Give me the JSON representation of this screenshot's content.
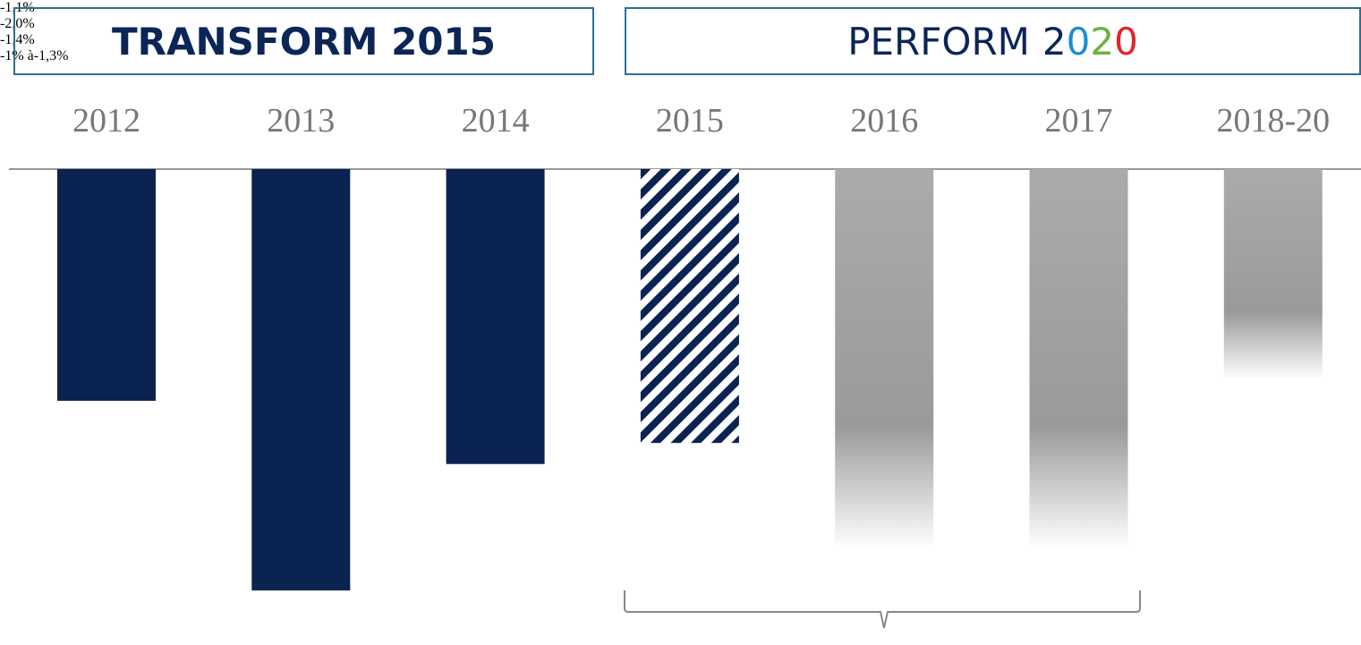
{
  "chart_data": {
    "type": "bar",
    "groups": [
      {
        "label": "TRANSFORM 2015"
      },
      {
        "label": "PERFORM",
        "year_digits": [
          "2",
          "0",
          "2",
          "0"
        ],
        "digit_colors": [
          "#0b2556",
          "#1a8fd0",
          "#6cb33f",
          "#e2232a"
        ]
      }
    ],
    "categories": [
      "2012",
      "2013",
      "2014",
      "2015",
      "2016",
      "2017",
      "2018-20"
    ],
    "values": [
      -1.1,
      -2.0,
      -1.4,
      -1.3,
      -1.8,
      -1.8,
      -1.0
    ],
    "value_labels": [
      "-1,1%",
      "-2,0%",
      "-1,4%",
      "-1% à-1,3%",
      null,
      null,
      null
    ],
    "styles": [
      "solid",
      "solid",
      "solid",
      "hatched",
      "faded",
      "faded",
      "faded"
    ],
    "color": "#0b2350",
    "ylim": [
      -2.0,
      0
    ]
  }
}
